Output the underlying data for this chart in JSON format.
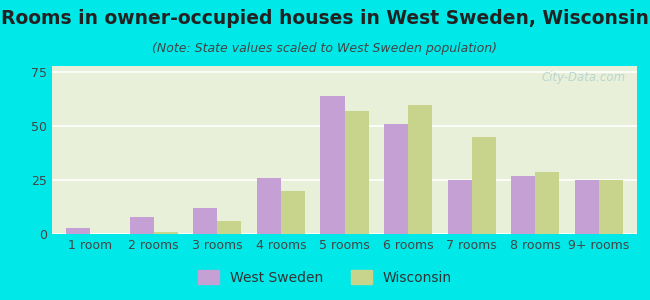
{
  "title": "Rooms in owner-occupied houses in West Sweden, Wisconsin",
  "subtitle": "(Note: State values scaled to West Sweden population)",
  "categories": [
    "1 room",
    "2 rooms",
    "3 rooms",
    "4 rooms",
    "5 rooms",
    "6 rooms",
    "7 rooms",
    "8 rooms",
    "9+ rooms"
  ],
  "west_sweden": [
    3,
    8,
    12,
    26,
    64,
    51,
    25,
    27,
    25
  ],
  "wisconsin": [
    0,
    1,
    6,
    20,
    57,
    60,
    45,
    29,
    25
  ],
  "color_west_sweden": "#c4a0d4",
  "color_wisconsin": "#c8d48c",
  "background_outer": "#00e8e8",
  "background_plot": "#e8f0da",
  "title_color": "#222222",
  "subtitle_color": "#444444",
  "axis_label_color": "#444444",
  "legend_label_color": "#333333",
  "ylim": [
    0,
    78
  ],
  "yticks": [
    0,
    25,
    50,
    75
  ],
  "watermark": "City-Data.com",
  "bar_width": 0.38,
  "title_fontsize": 13.5,
  "subtitle_fontsize": 9,
  "tick_fontsize": 9,
  "legend_fontsize": 10
}
